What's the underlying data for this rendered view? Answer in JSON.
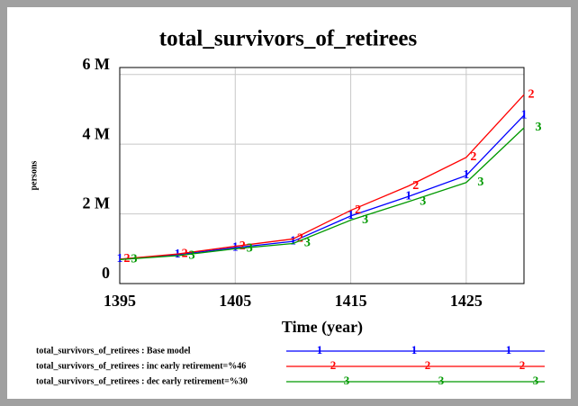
{
  "chart_data": {
    "type": "line",
    "title": "total_survivors_of_retirees",
    "x_label": "Time (year)",
    "y_label": "persons",
    "x": [
      1395,
      1400,
      1405,
      1410,
      1415,
      1420,
      1425,
      1430
    ],
    "xlim": [
      1395,
      1430
    ],
    "xticks": [
      1395,
      1405,
      1415,
      1425
    ],
    "ylim": [
      0,
      6200000
    ],
    "yticks": [
      {
        "value": 0,
        "label": "0"
      },
      {
        "value": 2000000,
        "label": "2 M"
      },
      {
        "value": 4000000,
        "label": "4 M"
      },
      {
        "value": 6000000,
        "label": "6 M"
      }
    ],
    "grid": true,
    "series": [
      {
        "name": "total_survivors_of_retirees : Base model",
        "marker": "1",
        "color": "#0000ff",
        "values": [
          700000,
          830000,
          1030000,
          1210000,
          1940000,
          2500000,
          3100000,
          4830000
        ]
      },
      {
        "name": "total_survivors_of_retirees : inc early retirement=%46",
        "marker": "2",
        "color": "#ff0000",
        "values": [
          700000,
          850000,
          1070000,
          1280000,
          2100000,
          2800000,
          3620000,
          5420000
        ]
      },
      {
        "name": "total_survivors_of_retirees : dec early retirement=%30",
        "marker": "3",
        "color": "#009900",
        "values": [
          690000,
          800000,
          1000000,
          1150000,
          1820000,
          2350000,
          2900000,
          4470000
        ]
      }
    ]
  }
}
